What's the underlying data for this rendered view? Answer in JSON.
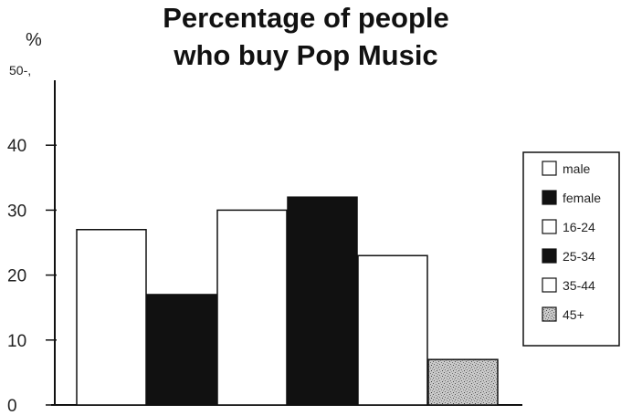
{
  "chart_data": {
    "type": "bar",
    "title_line1": "Percentage of people",
    "title_line2": "who buy Pop Music",
    "ylabel": "%",
    "top_tick_label": "50-,",
    "yticks": [
      "0",
      "10",
      "20",
      "30",
      "40"
    ],
    "ytick_values": [
      0,
      10,
      20,
      30,
      40
    ],
    "ylim": [
      0,
      50
    ],
    "grid": false,
    "legend_position": "right",
    "categories": [
      "male",
      "female",
      "16-24",
      "25-34",
      "35-44",
      "45+"
    ],
    "values": [
      27,
      17,
      30,
      32,
      23,
      7
    ],
    "colors": {
      "male": "#ffffff",
      "female": "#111111",
      "16-24": "#ffffff",
      "25-34": "#111111",
      "35-44": "#ffffff",
      "45+": "#bdbdbd"
    },
    "fills": [
      "white",
      "black",
      "white",
      "black",
      "white",
      "speckled-grey"
    ],
    "legend": [
      "male",
      "female",
      "16-24",
      "25-34",
      "35-44",
      "45+"
    ]
  }
}
